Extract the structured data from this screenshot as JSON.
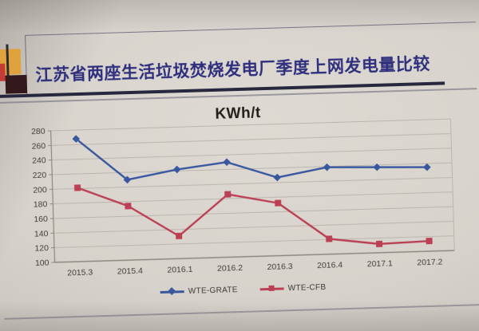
{
  "slide": {
    "title": "江苏省两座生活垃圾焚烧发电厂季度上网发电量比较",
    "title_color": "#2e2e7d",
    "decor_colors": {
      "yellow": "#dfa23c",
      "red": "#c23b34",
      "maroon": "#33191c"
    }
  },
  "chart_data": {
    "type": "line",
    "title": "KWh/t",
    "categories": [
      "2015.3",
      "2015.4",
      "2016.1",
      "2016.2",
      "2016.3",
      "2016.4",
      "2017.1",
      "2017.2"
    ],
    "series": [
      {
        "name": "WTE-GRATE",
        "color": "#39579e",
        "marker": "diamond",
        "values": [
          268,
          210,
          222,
          230,
          207,
          219,
          217,
          215
        ]
      },
      {
        "name": "WTE-CFB",
        "color": "#bc4055",
        "marker": "square",
        "values": [
          201,
          174,
          131,
          186,
          172,
          121,
          112,
          114
        ]
      }
    ],
    "ylim": [
      100,
      280
    ],
    "yticks": [
      280,
      260,
      240,
      220,
      200,
      180,
      160,
      140,
      120,
      100
    ],
    "grid": true,
    "legend_position": "bottom",
    "gridline_color": "#bab6af",
    "axis_color": "#8d8981",
    "label_color": "#3f3d3a"
  }
}
